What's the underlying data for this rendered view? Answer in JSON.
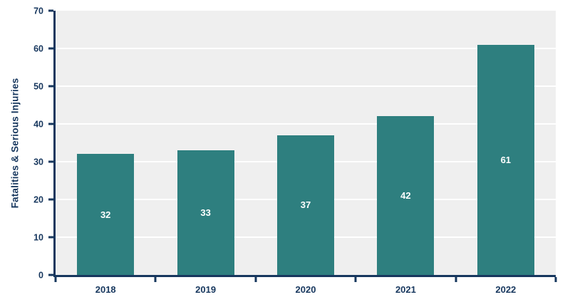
{
  "chart_data": {
    "type": "bar",
    "title": "",
    "xlabel": "",
    "ylabel": "Fatalities & Serious Injuries",
    "categories": [
      "2018",
      "2019",
      "2020",
      "2021",
      "2022"
    ],
    "values": [
      32,
      33,
      37,
      42,
      61
    ],
    "ylim": [
      0,
      70
    ],
    "ytick_step": 10,
    "yticks": [
      0,
      10,
      20,
      30,
      40,
      50,
      60,
      70
    ],
    "grid": "horizontal",
    "legend": "none",
    "bar_value_labels_visible": true,
    "colors": {
      "bar": "#2E7F7F",
      "axis_text": "#17375E",
      "plot_background": "#EFEFEF",
      "gridline": "#FFFFFF",
      "bar_label": "#FFFFFF"
    }
  }
}
